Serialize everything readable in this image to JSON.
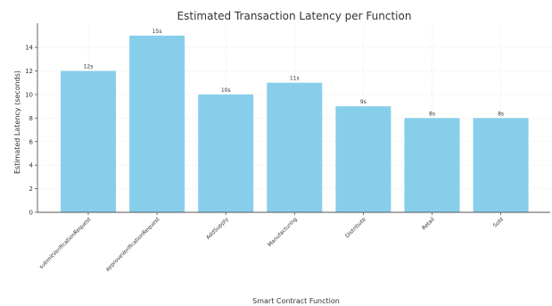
{
  "chart_data": {
    "type": "bar",
    "title": "Estimated Transaction Latency per Function",
    "xlabel": "Smart Contract Function",
    "ylabel": "Estimated Latency (seconds)",
    "categories": [
      "submitVerificationRequest",
      "approveVerificationRequest",
      "AddSupply",
      "Manufacturing",
      "Distribute",
      "Retail",
      "Sold"
    ],
    "values": [
      12,
      15,
      10,
      11,
      9,
      8,
      8
    ],
    "data_labels": [
      "12s",
      "15s",
      "10s",
      "11s",
      "9s",
      "8s",
      "8s"
    ],
    "ylim": [
      0,
      15.75
    ],
    "yticks": [
      0,
      2,
      4,
      6,
      8,
      10,
      12,
      14
    ],
    "grid": true,
    "colors": {
      "bar": "#87ceeb",
      "axis": "#555555",
      "grid": "#e6e6e6"
    }
  }
}
